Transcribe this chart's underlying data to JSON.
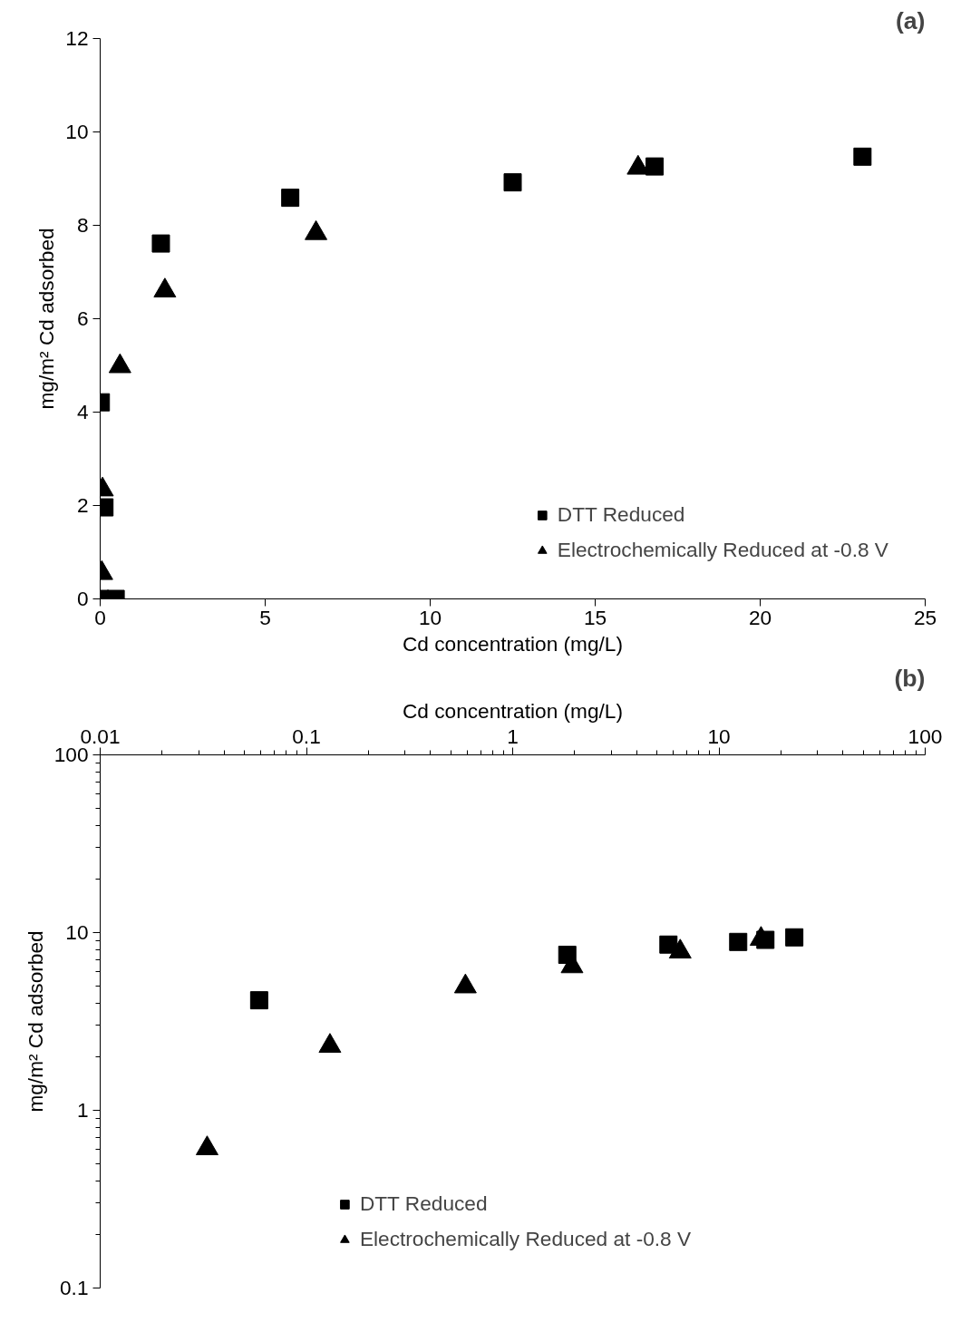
{
  "chart_data": [
    {
      "type": "scatter",
      "title": "(a)",
      "xlabel": "Cd concentration (mg/L)",
      "ylabel": "mg/m² Cd adsorbed",
      "xlim": [
        0,
        25
      ],
      "ylim": [
        0,
        12
      ],
      "xticks": [
        0,
        5,
        10,
        15,
        20,
        25
      ],
      "yticks": [
        0,
        2,
        4,
        6,
        8,
        10,
        12
      ],
      "grid": false,
      "legend": "bottom right",
      "series": [
        {
          "name": "DTT Reduced",
          "color": "#000000",
          "marker": "square",
          "x": [
            0,
            0.47,
            0.13,
            0.02,
            1.84,
            5.76,
            12.5,
            16.8,
            23.1
          ],
          "values": [
            0,
            0,
            1.96,
            4.21,
            7.61,
            8.59,
            8.92,
            9.26,
            9.47
          ]
        },
        {
          "name": "Electrochemically Reduced at -0.8 V",
          "color": "#000000",
          "marker": "triangle",
          "x": [
            0.05,
            0.07,
            0.6,
            1.96,
            6.54,
            16.3
          ],
          "values": [
            0.55,
            2.34,
            4.98,
            6.6,
            7.83,
            9.23
          ]
        }
      ]
    },
    {
      "type": "scatter",
      "title": "(b)",
      "xlabel": "Cd concentration (mg/L)",
      "ylabel": "mg/m² Cd adsorbed",
      "log": "xy",
      "xlim": [
        0.01,
        100
      ],
      "ylim": [
        0.1,
        100
      ],
      "xticks": [
        0.01,
        0.1,
        1,
        10,
        100
      ],
      "yticks": [
        0.1,
        1,
        10,
        100
      ],
      "grid": false,
      "legend": "bottom",
      "series": [
        {
          "name": "DTT Reduced",
          "color": "#000000",
          "marker": "square",
          "x": [
            0.059,
            1.84,
            5.69,
            12.4,
            16.8,
            23.2
          ],
          "values": [
            4.16,
            7.5,
            8.56,
            8.86,
            9.1,
            9.4
          ]
        },
        {
          "name": "Electrochemically Reduced at -0.8 V",
          "color": "#000000",
          "marker": "triangle",
          "x": [
            0.033,
            0.13,
            0.59,
            1.94,
            6.49,
            16.0
          ],
          "values": [
            0.61,
            2.3,
            4.97,
            6.45,
            7.8,
            9.2
          ]
        }
      ]
    }
  ]
}
